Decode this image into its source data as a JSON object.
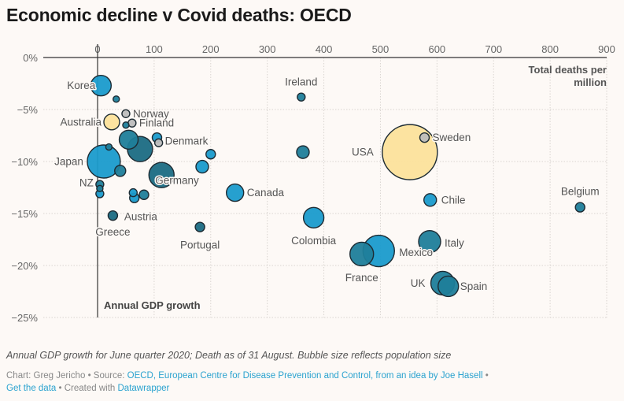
{
  "title": "Economic decline v Covid deaths: OECD",
  "notes": "Annual GDP growth for June quarter 2020; Death as of 31 August. Bubble size reflects population size",
  "footer": {
    "chart_by": "Chart: Greg Jericho",
    "source_label": "Source:",
    "source_text": "OECD, European Centre for Disease Prevention and Control, from an idea by Joe Hasell",
    "get_data": "Get the data",
    "created_with": "Created with",
    "tool": "Datawrapper",
    "sep": "•"
  },
  "colors": {
    "background": "#fdf9f6",
    "blue": "#1a9bcc",
    "teal": "#1f7e9a",
    "darkteal": "#1b6b83",
    "grey": "#bdbdbd",
    "yellow": "#fce29b",
    "link": "#2aa2cf"
  },
  "chart_data": {
    "type": "scatter",
    "xlabel": "Total deaths per million",
    "ylabel": "Annual GDP growth",
    "xlim": [
      -5,
      900
    ],
    "ylim": [
      -25,
      0
    ],
    "x_ticks": [
      0,
      100,
      200,
      300,
      400,
      500,
      600,
      700,
      800,
      900
    ],
    "y_ticks": [
      0,
      -5,
      -10,
      -15,
      -20,
      -25
    ],
    "y_tick_labels": [
      "0%",
      "−5%",
      "−10%",
      "−15%",
      "−20%",
      "−25%"
    ],
    "grid": true,
    "points": [
      {
        "label": "Korea",
        "x": 6,
        "y": -2.7,
        "r": 13,
        "color": "blue",
        "lx": -7,
        "ly": 0,
        "anchor": "end"
      },
      {
        "label": "",
        "x": 33,
        "y": -4.0,
        "r": 4,
        "color": "teal"
      },
      {
        "label": "Norway",
        "x": 50,
        "y": -5.4,
        "r": 5,
        "color": "grey",
        "lx": 9,
        "ly": 0,
        "anchor": "start"
      },
      {
        "label": "Finland",
        "x": 61,
        "y": -6.3,
        "r": 5,
        "color": "grey",
        "lx": 9,
        "ly": 0,
        "anchor": "start"
      },
      {
        "label": "Australia",
        "x": 25,
        "y": -6.2,
        "r": 10,
        "color": "yellow",
        "lx": -13,
        "ly": 0,
        "anchor": "end"
      },
      {
        "label": "",
        "x": 50,
        "y": -6.5,
        "r": 4,
        "color": "teal"
      },
      {
        "label": "Denmark",
        "x": 108,
        "y": -8.2,
        "r": 5,
        "color": "grey",
        "lx": 8,
        "ly": -2,
        "anchor": "start"
      },
      {
        "label": "",
        "x": 105,
        "y": -7.7,
        "r": 6,
        "color": "blue"
      },
      {
        "label": "",
        "x": 55,
        "y": -7.9,
        "r": 12,
        "color": "teal"
      },
      {
        "label": "",
        "x": 75,
        "y": -8.8,
        "r": 16,
        "color": "darkteal"
      },
      {
        "label": "",
        "x": 20,
        "y": -8.6,
        "r": 4,
        "color": "teal"
      },
      {
        "label": "",
        "x": 200,
        "y": -9.3,
        "r": 6,
        "color": "blue"
      },
      {
        "label": "",
        "x": 363,
        "y": -9.1,
        "r": 8,
        "color": "teal"
      },
      {
        "label": "Japan",
        "x": 11,
        "y": -10.0,
        "r": 21,
        "color": "blue",
        "lx": -26,
        "ly": 0,
        "anchor": "end"
      },
      {
        "label": "",
        "x": 40,
        "y": -10.9,
        "r": 7,
        "color": "teal"
      },
      {
        "label": "",
        "x": 185,
        "y": -10.5,
        "r": 8,
        "color": "blue"
      },
      {
        "label": "Germany",
        "x": 113,
        "y": -11.3,
        "r": 16,
        "color": "darkteal",
        "lx": -8,
        "ly": 7,
        "anchor": "start"
      },
      {
        "label": "NZ",
        "x": 4,
        "y": -12.2,
        "r": 5,
        "color": "teal",
        "lx": -8,
        "ly": -2,
        "anchor": "end"
      },
      {
        "label": "",
        "x": 4,
        "y": -13.1,
        "r": 5,
        "color": "blue"
      },
      {
        "label": "",
        "x": 4,
        "y": -12.6,
        "r": 4,
        "color": "teal"
      },
      {
        "label": "",
        "x": 63,
        "y": -13.0,
        "r": 5,
        "color": "blue"
      },
      {
        "label": "",
        "x": 65,
        "y": -13.5,
        "r": 6,
        "color": "blue"
      },
      {
        "label": "Austria",
        "x": 82,
        "y": -13.2,
        "r": 6,
        "color": "teal",
        "lx": -4,
        "ly": 28,
        "anchor": "middle"
      },
      {
        "label": "Canada",
        "x": 243,
        "y": -13.0,
        "r": 11,
        "color": "blue",
        "lx": 15,
        "ly": 0,
        "anchor": "start"
      },
      {
        "label": "Greece",
        "x": 27,
        "y": -15.2,
        "r": 6,
        "color": "darkteal",
        "lx": 0,
        "ly": 21,
        "anchor": "middle"
      },
      {
        "label": "Portugal",
        "x": 181,
        "y": -16.3,
        "r": 6,
        "color": "darkteal",
        "lx": 0,
        "ly": 23,
        "anchor": "middle"
      },
      {
        "label": "Colombia",
        "x": 382,
        "y": -15.4,
        "r": 13,
        "color": "blue",
        "lx": 0,
        "ly": 29,
        "anchor": "middle"
      },
      {
        "label": "Ireland",
        "x": 360,
        "y": -3.8,
        "r": 5,
        "color": "teal",
        "lx": 0,
        "ly": -19,
        "anchor": "middle"
      },
      {
        "label": "Sweden",
        "x": 578,
        "y": -7.7,
        "r": 6,
        "color": "grey",
        "lx": 10,
        "ly": 0,
        "anchor": "start"
      },
      {
        "label": "USA",
        "x": 552,
        "y": -9.1,
        "r": 35,
        "color": "yellow",
        "lx": -46,
        "ly": 0,
        "anchor": "end"
      },
      {
        "label": "Chile",
        "x": 588,
        "y": -13.7,
        "r": 8,
        "color": "blue",
        "lx": 14,
        "ly": 0,
        "anchor": "start"
      },
      {
        "label": "Belgium",
        "x": 853,
        "y": -14.4,
        "r": 6,
        "color": "teal",
        "lx": 0,
        "ly": -20,
        "anchor": "middle"
      },
      {
        "label": "France",
        "x": 467,
        "y": -18.9,
        "r": 15,
        "color": "teal",
        "lx": 0,
        "ly": 30,
        "anchor": "middle"
      },
      {
        "label": "Mexico",
        "x": 497,
        "y": -18.6,
        "r": 20,
        "color": "blue",
        "lx": 26,
        "ly": 2,
        "anchor": "start"
      },
      {
        "label": "Italy",
        "x": 587,
        "y": -17.7,
        "r": 14,
        "color": "teal",
        "lx": 19,
        "ly": 2,
        "anchor": "start"
      },
      {
        "label": "UK",
        "x": 610,
        "y": -21.7,
        "r": 15,
        "color": "teal",
        "lx": -22,
        "ly": 0,
        "anchor": "end"
      },
      {
        "label": "Spain",
        "x": 620,
        "y": -22.0,
        "r": 13,
        "color": "teal",
        "lx": 15,
        "ly": 0,
        "anchor": "start"
      }
    ]
  }
}
